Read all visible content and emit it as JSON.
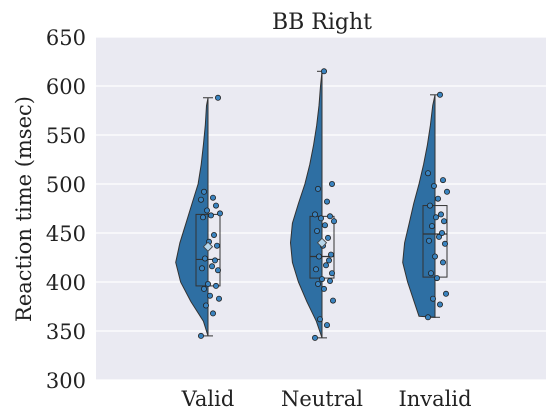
{
  "chart_data": {
    "type": "raincloud",
    "title": "BB Right",
    "xlabel": "",
    "ylabel": "Reaction time (msec)",
    "ylim": [
      300,
      650
    ],
    "yticks": [
      300,
      350,
      400,
      450,
      500,
      550,
      600,
      650
    ],
    "grid": true,
    "colors": {
      "plot_bg": "#eaeaf2",
      "grid": "#ffffff",
      "violin": "#2e6fa3",
      "violin_edge": "#333333",
      "point": "#3a83bf",
      "mean_marker": "#b7d6ea"
    },
    "categories": [
      "Valid",
      "Neutral",
      "Invalid"
    ],
    "groups": [
      {
        "name": "Valid",
        "box": {
          "q1": 396,
          "median": 423,
          "q3": 469,
          "whisker_low": 345,
          "whisker_high": 588
        },
        "mean": 436,
        "violin": [
          [
            345,
            0.0
          ],
          [
            360,
            0.12
          ],
          [
            380,
            0.45
          ],
          [
            400,
            0.72
          ],
          [
            420,
            0.85
          ],
          [
            440,
            0.74
          ],
          [
            460,
            0.58
          ],
          [
            480,
            0.42
          ],
          [
            500,
            0.26
          ],
          [
            520,
            0.18
          ],
          [
            540,
            0.12
          ],
          [
            560,
            0.07
          ],
          [
            580,
            0.04
          ],
          [
            588,
            0.0
          ]
        ],
        "points": [
          345,
          368,
          376,
          383,
          386,
          393,
          396,
          398,
          412,
          414,
          416,
          422,
          424,
          437,
          441,
          448,
          466,
          468,
          470,
          473,
          478,
          484,
          486,
          492,
          588
        ]
      },
      {
        "name": "Neutral",
        "box": {
          "q1": 404,
          "median": 426,
          "q3": 467,
          "whisker_low": 343,
          "whisker_high": 615
        },
        "mean": 440,
        "violin": [
          [
            343,
            0.0
          ],
          [
            360,
            0.15
          ],
          [
            380,
            0.4
          ],
          [
            400,
            0.62
          ],
          [
            420,
            0.78
          ],
          [
            440,
            0.83
          ],
          [
            460,
            0.78
          ],
          [
            480,
            0.62
          ],
          [
            500,
            0.45
          ],
          [
            520,
            0.32
          ],
          [
            540,
            0.22
          ],
          [
            560,
            0.14
          ],
          [
            580,
            0.08
          ],
          [
            600,
            0.04
          ],
          [
            615,
            0.0
          ]
        ],
        "points": [
          343,
          356,
          362,
          381,
          393,
          398,
          401,
          403,
          409,
          413,
          417,
          422,
          426,
          428,
          437,
          445,
          452,
          458,
          462,
          465,
          467,
          469,
          482,
          495,
          500,
          615
        ]
      },
      {
        "name": "Invalid",
        "box": {
          "q1": 405,
          "median": 449,
          "q3": 478,
          "whisker_low": 364,
          "whisker_high": 591
        },
        "mean": null,
        "violin": [
          [
            364,
            0.0
          ],
          [
            365,
            0.42
          ],
          [
            380,
            0.55
          ],
          [
            400,
            0.72
          ],
          [
            420,
            0.85
          ],
          [
            440,
            0.8
          ],
          [
            460,
            0.68
          ],
          [
            480,
            0.56
          ],
          [
            500,
            0.42
          ],
          [
            520,
            0.3
          ],
          [
            540,
            0.2
          ],
          [
            560,
            0.12
          ],
          [
            580,
            0.06
          ],
          [
            591,
            0.0
          ]
        ],
        "points": [
          364,
          377,
          383,
          388,
          404,
          409,
          420,
          426,
          439,
          442,
          446,
          450,
          457,
          462,
          466,
          469,
          478,
          485,
          492,
          498,
          504,
          511,
          591
        ]
      }
    ]
  }
}
